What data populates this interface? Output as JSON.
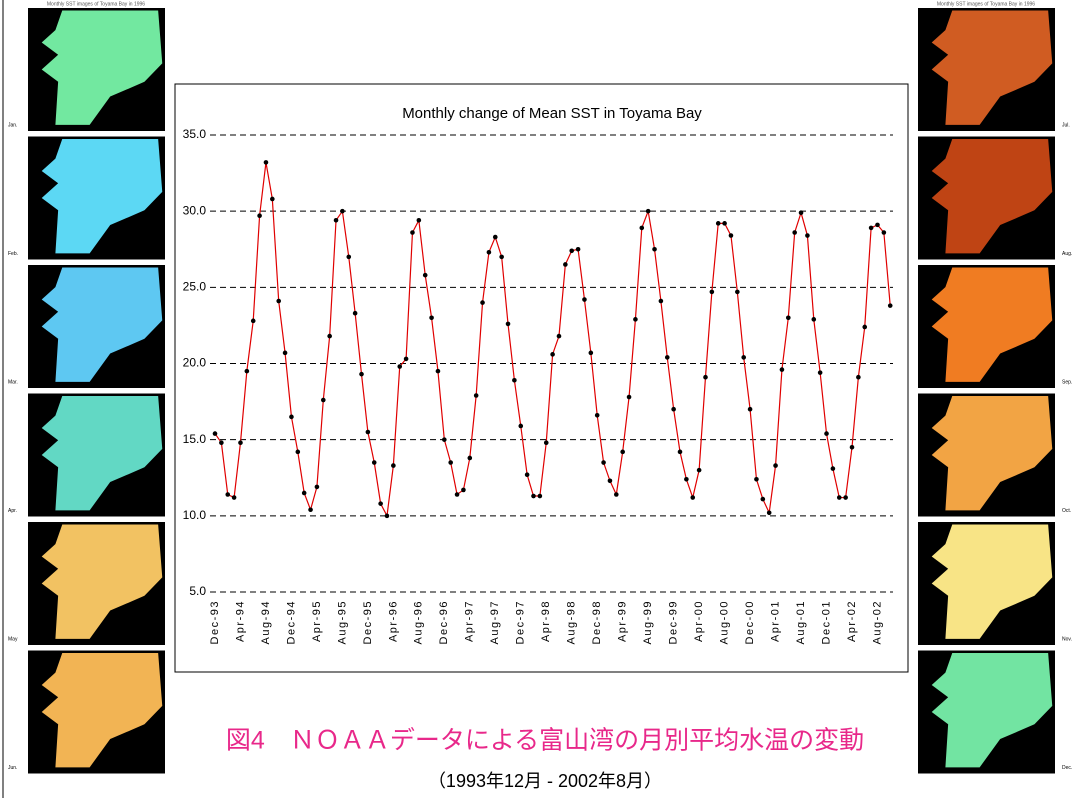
{
  "chart_data": {
    "type": "line",
    "title": "Monthly change of Mean SST in Toyama Bay",
    "categories": [
      "Dec-93",
      null,
      null,
      null,
      "Apr-94",
      null,
      null,
      null,
      "Aug-94",
      null,
      null,
      null,
      "Dec-94",
      null,
      null,
      null,
      "Apr-95",
      null,
      null,
      null,
      "Aug-95",
      null,
      null,
      null,
      "Dec-95",
      null,
      null,
      null,
      "Apr-96",
      null,
      null,
      null,
      "Aug-96",
      null,
      null,
      null,
      "Dec-96",
      null,
      null,
      null,
      "Apr-97",
      null,
      null,
      null,
      "Aug-97",
      null,
      null,
      null,
      "Dec-97",
      null,
      null,
      null,
      "Apr-98",
      null,
      null,
      null,
      "Aug-98",
      null,
      null,
      null,
      "Dec-98",
      null,
      null,
      null,
      "Apr-99",
      null,
      null,
      null,
      "Aug-99",
      null,
      null,
      null,
      "Dec-99",
      null,
      null,
      null,
      "Apr-00",
      null,
      null,
      null,
      "Aug-00",
      null,
      null,
      null,
      "Dec-00",
      null,
      null,
      null,
      "Apr-01",
      null,
      null,
      null,
      "Aug-01",
      null,
      null,
      null,
      "Dec-01",
      null,
      null,
      null,
      "Apr-02",
      null,
      null,
      null,
      "Aug-02",
      null,
      null
    ],
    "values": [
      15.4,
      14.8,
      11.4,
      11.2,
      14.8,
      19.5,
      22.8,
      29.7,
      33.2,
      30.8,
      24.1,
      20.7,
      16.5,
      14.2,
      11.5,
      10.4,
      11.9,
      17.6,
      21.8,
      29.4,
      30.0,
      27.0,
      23.3,
      19.3,
      15.5,
      13.5,
      10.8,
      10.0,
      13.3,
      19.8,
      20.3,
      28.6,
      29.4,
      25.8,
      23.0,
      19.5,
      15.0,
      13.5,
      11.4,
      11.7,
      13.8,
      17.9,
      24.0,
      27.3,
      28.3,
      27.0,
      22.6,
      18.9,
      15.9,
      12.7,
      11.3,
      11.3,
      14.8,
      20.6,
      21.8,
      26.5,
      27.4,
      27.5,
      24.2,
      20.7,
      16.6,
      13.5,
      12.3,
      11.4,
      14.2,
      17.8,
      22.9,
      28.9,
      30.0,
      27.5,
      24.1,
      20.4,
      17.0,
      14.2,
      12.4,
      11.2,
      13.0,
      19.1,
      24.7,
      29.2,
      29.2,
      28.4,
      24.7,
      20.4,
      17.0,
      12.4,
      11.1,
      10.2,
      13.3,
      19.6,
      23.0,
      28.6,
      29.9,
      28.4,
      22.9,
      19.4,
      15.4,
      13.1,
      11.2,
      11.2,
      14.5,
      19.1,
      22.4,
      28.9,
      29.1,
      28.6,
      23.8
    ],
    "color": "#e00000",
    "marker_color": "#000000",
    "ylim": [
      5,
      35
    ],
    "yticks": [
      {
        "value": 5,
        "label": "5.0"
      },
      {
        "value": 10,
        "label": "10.0"
      },
      {
        "value": 15,
        "label": "15.0"
      },
      {
        "value": 20,
        "label": "20.0"
      },
      {
        "value": 25,
        "label": "25.0"
      },
      {
        "value": 30,
        "label": "30.0"
      },
      {
        "value": 35,
        "label": "35.0"
      }
    ],
    "grid": true
  },
  "caption": "図4　ＮＯＡＡデータによる富山湾の月別平均水温の変動",
  "subcaption": "（1993年12月 - 2002年8月）",
  "side_images": {
    "title": "Monthly SST images of Toyama Bay in 1996",
    "months": [
      "Jan.",
      "Feb.",
      "Mar.",
      "Apr.",
      "May",
      "Jun.",
      "Jul.",
      "Aug.",
      "Sep.",
      "Oct.",
      "Nov.",
      "Dec."
    ],
    "colors": [
      "#72e8a0",
      "#5cd8f4",
      "#5ec8f2",
      "#62d8c4",
      "#f2c262",
      "#f2b454",
      "#d05c22",
      "#bf4414",
      "#f07c22",
      "#f2a444",
      "#f8e486",
      "#72e4a2"
    ]
  }
}
